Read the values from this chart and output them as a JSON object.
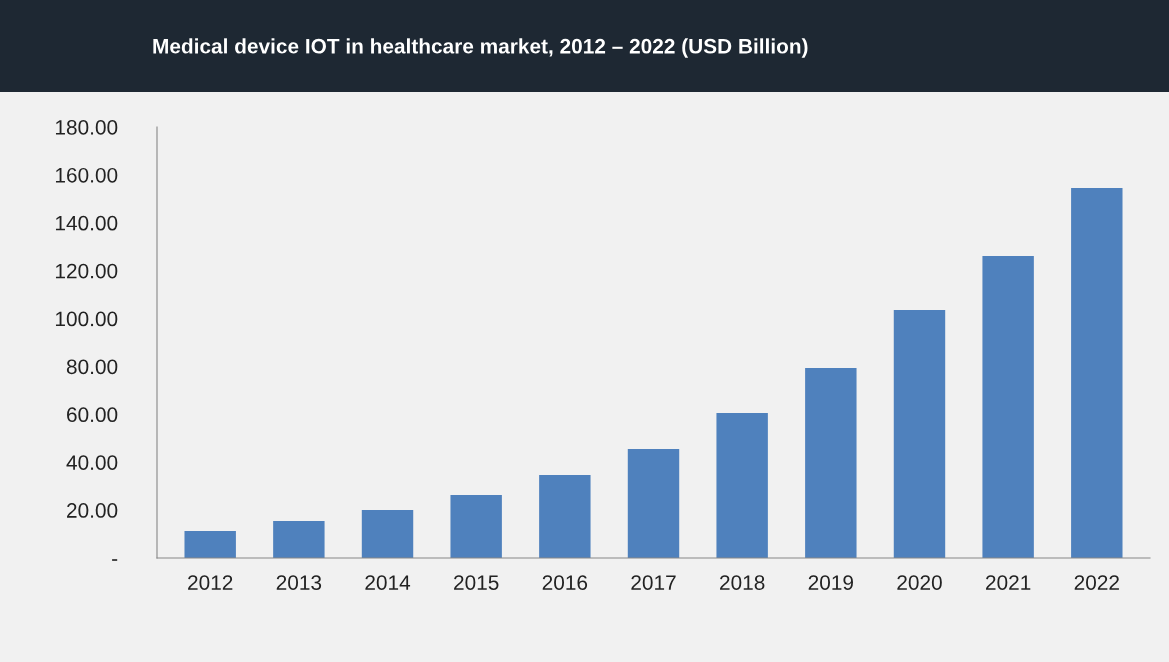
{
  "chart_data": {
    "type": "bar",
    "title": "Medical device IOT in healthcare market, 2012 – 2022 (USD Billion)",
    "categories": [
      "2012",
      "2013",
      "2014",
      "2015",
      "2016",
      "2017",
      "2018",
      "2019",
      "2020",
      "2021",
      "2022"
    ],
    "values": [
      11.3,
      15.5,
      20.0,
      26.3,
      34.7,
      45.5,
      60.6,
      79.4,
      103.6,
      126.1,
      154.5
    ],
    "color": "#4f81bd",
    "ylim": [
      0,
      180
    ],
    "yticks": [
      {
        "value": 0,
        "label": "-"
      },
      {
        "value": 20,
        "label": "20.00"
      },
      {
        "value": 40,
        "label": "40.00"
      },
      {
        "value": 60,
        "label": "60.00"
      },
      {
        "value": 80,
        "label": "80.00"
      },
      {
        "value": 100,
        "label": "100.00"
      },
      {
        "value": 120,
        "label": "120.00"
      },
      {
        "value": 140,
        "label": "140.00"
      },
      {
        "value": 160,
        "label": "160.00"
      },
      {
        "value": 180,
        "label": "180.00"
      }
    ],
    "grid": false
  }
}
